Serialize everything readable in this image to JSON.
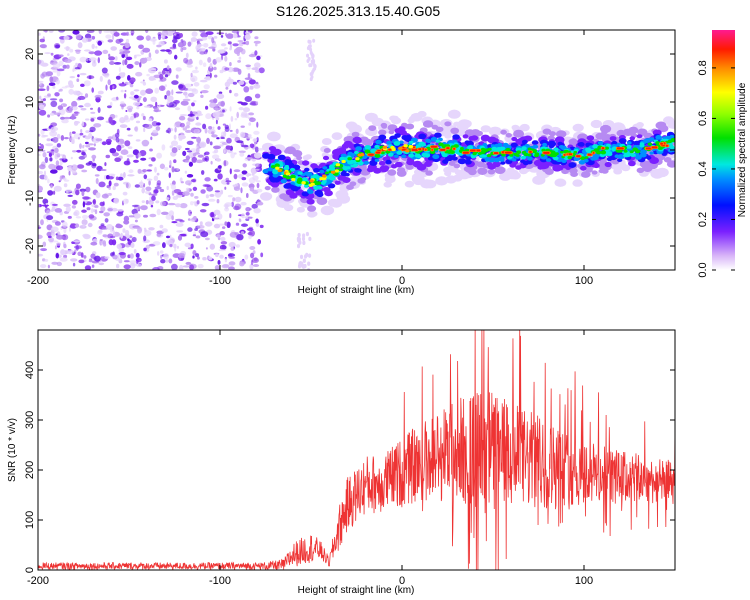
{
  "title": "S126.2025.313.15.40.G05",
  "chart_data": [
    {
      "type": "heatmap",
      "xlabel": "Height of straight line (km)",
      "ylabel": "Frequency (Hz)",
      "xlim": [
        -200,
        150
      ],
      "ylim": [
        -25,
        25
      ],
      "x_ticks": [
        -200,
        -100,
        0,
        100
      ],
      "y_ticks": [
        -20,
        -10,
        0,
        10,
        20
      ],
      "colorbar": {
        "label": "Normalized spectral amplitude",
        "range": [
          0,
          0.95
        ],
        "ticks": [
          0.0,
          0.2,
          0.4,
          0.6,
          0.8
        ]
      },
      "ridge": {
        "x": [
          -75,
          -70,
          -60,
          -50,
          -45,
          -40,
          -30,
          -20,
          -10,
          0,
          10,
          20,
          30,
          40,
          50,
          60,
          70,
          80,
          90,
          100,
          110,
          120,
          130,
          140,
          150
        ],
        "freq": [
          -2.5,
          -3.5,
          -5.5,
          -7,
          -6.5,
          -5,
          -2.5,
          -1,
          0,
          0.5,
          0,
          0.5,
          0,
          -0.5,
          -0.5,
          -0.5,
          -0.5,
          -0.5,
          -1,
          -1,
          0,
          0,
          0,
          1,
          1.5
        ]
      }
    },
    {
      "type": "line",
      "xlabel": "Height of straight line (km)",
      "ylabel": "SNR (10 * v/v)",
      "xlim": [
        -200,
        150
      ],
      "ylim": [
        0,
        480
      ],
      "x_ticks": [
        -200,
        -100,
        0,
        100
      ],
      "y_ticks": [
        0,
        100,
        200,
        300,
        400
      ],
      "line_color": "#ee3333",
      "envelope": {
        "x": [
          -200,
          -80,
          -75,
          -65,
          -60,
          -50,
          -45,
          -40,
          -35,
          -30,
          -20,
          -10,
          0,
          10,
          20,
          30,
          40,
          50,
          60,
          70,
          80,
          90,
          100,
          110,
          120,
          130,
          140,
          150
        ],
        "base": [
          8,
          8,
          8,
          10,
          30,
          45,
          40,
          15,
          80,
          130,
          170,
          175,
          195,
          215,
          230,
          240,
          240,
          235,
          225,
          220,
          210,
          200,
          195,
          190,
          185,
          182,
          178,
          175
        ],
        "amp": [
          7,
          7,
          8,
          12,
          25,
          30,
          20,
          10,
          45,
          55,
          60,
          60,
          70,
          80,
          95,
          110,
          120,
          130,
          110,
          100,
          90,
          80,
          70,
          60,
          55,
          50,
          45,
          45
        ]
      }
    }
  ]
}
